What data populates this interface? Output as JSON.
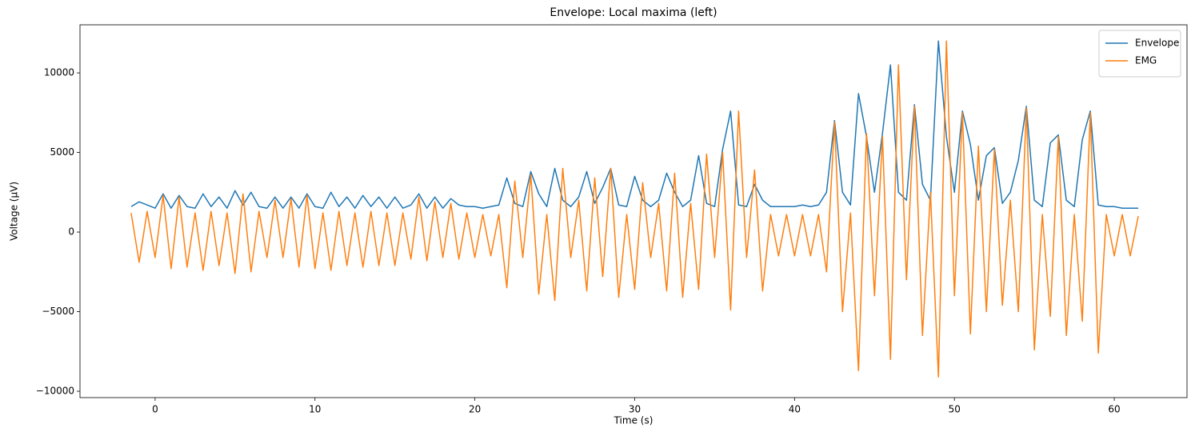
{
  "chart_data": {
    "type": "line",
    "title": "Envelope: Local maxima (left)",
    "x_label": "Time (s)",
    "y_label": "Voltage (μV)",
    "x": [
      -1.5,
      -1.0,
      -0.5,
      0.0,
      0.5,
      1.0,
      1.5,
      2.0,
      2.5,
      3.0,
      3.5,
      4.0,
      4.5,
      5.0,
      5.5,
      6.0,
      6.5,
      7.0,
      7.5,
      8.0,
      8.5,
      9.0,
      9.5,
      10.0,
      10.5,
      11.0,
      11.5,
      12.0,
      12.5,
      13.0,
      13.5,
      14.0,
      14.5,
      15.0,
      15.5,
      16.0,
      16.5,
      17.0,
      17.5,
      18.0,
      18.5,
      19.0,
      19.5,
      20.0,
      20.5,
      21.0,
      21.5,
      22.0,
      22.5,
      23.0,
      23.5,
      24.0,
      24.5,
      25.0,
      25.5,
      26.0,
      26.5,
      27.0,
      27.5,
      28.0,
      28.5,
      29.0,
      29.5,
      30.0,
      30.5,
      31.0,
      31.5,
      32.0,
      32.5,
      33.0,
      33.5,
      34.0,
      34.5,
      35.0,
      35.5,
      36.0,
      36.5,
      37.0,
      37.5,
      38.0,
      38.5,
      39.0,
      39.5,
      40.0,
      40.5,
      41.0,
      41.5,
      42.0,
      42.5,
      43.0,
      43.5,
      44.0,
      44.5,
      45.0,
      45.5,
      46.0,
      46.5,
      47.0,
      47.5,
      48.0,
      48.5,
      49.0,
      49.5,
      50.0,
      50.5,
      51.0,
      51.5,
      52.0,
      52.5,
      53.0,
      53.5,
      54.0,
      54.5,
      55.0,
      55.5,
      56.0,
      56.5,
      57.0,
      57.5,
      58.0,
      58.5,
      59.0,
      59.5,
      60.0,
      60.5,
      61.0,
      61.5
    ],
    "series": [
      {
        "name": "Envelope",
        "color": "#1f77b4",
        "values": [
          1600,
          1900,
          1700,
          1500,
          2400,
          1500,
          2300,
          1600,
          1500,
          2400,
          1600,
          2200,
          1500,
          2600,
          1700,
          2500,
          1600,
          1500,
          2200,
          1500,
          2200,
          1500,
          2400,
          1600,
          1500,
          2500,
          1600,
          2200,
          1500,
          2300,
          1600,
          2200,
          1500,
          2200,
          1500,
          1700,
          2400,
          1500,
          2200,
          1500,
          2100,
          1700,
          1600,
          1600,
          1500,
          1600,
          1700,
          3400,
          1800,
          1600,
          3800,
          2400,
          1600,
          4000,
          2000,
          1600,
          2200,
          3800,
          1800,
          2800,
          4000,
          1700,
          1600,
          3500,
          2000,
          1600,
          2000,
          3700,
          2500,
          1600,
          2000,
          4800,
          1800,
          1600,
          5200,
          7600,
          1700,
          1600,
          3000,
          2000,
          1600,
          1600,
          1600,
          1600,
          1700,
          1600,
          1700,
          2500,
          7000,
          2500,
          1700,
          8700,
          6000,
          2500,
          6200,
          10500,
          2500,
          2000,
          8000,
          3000,
          2000,
          12000,
          6000,
          2500,
          7600,
          5500,
          2000,
          4800,
          5300,
          1800,
          2500,
          4500,
          7900,
          2000,
          1600,
          5600,
          6100,
          2000,
          1600,
          5800,
          7600,
          1700,
          1600,
          1600,
          1500,
          1500,
          1500
        ]
      },
      {
        "name": "EMG",
        "color": "#ff7f0e",
        "values": [
          1200,
          -1900,
          1300,
          -1600,
          2300,
          -2300,
          2200,
          -2200,
          1200,
          -2400,
          1300,
          -2100,
          1200,
          -2600,
          2400,
          -2500,
          1300,
          -1600,
          2000,
          -1600,
          2100,
          -2200,
          2300,
          -2300,
          1200,
          -2400,
          1300,
          -2100,
          1200,
          -2200,
          1300,
          -2100,
          1200,
          -2100,
          1200,
          -1700,
          2200,
          -1800,
          1900,
          -1600,
          1800,
          -1700,
          1200,
          -1600,
          1100,
          -1500,
          1100,
          -3500,
          3200,
          -1600,
          3600,
          -3900,
          1100,
          -4300,
          4000,
          -1600,
          2000,
          -3700,
          3400,
          -2800,
          4000,
          -4100,
          1100,
          -3600,
          3100,
          -1600,
          1800,
          -3700,
          3700,
          -4100,
          1800,
          -3600,
          4900,
          -1600,
          5000,
          -4900,
          7600,
          -1600,
          3900,
          -3700,
          1100,
          -1500,
          1100,
          -1500,
          1100,
          -1500,
          1100,
          -2500,
          6900,
          -5000,
          1200,
          -8700,
          6200,
          -4000,
          6000,
          -8000,
          10500,
          -3000,
          7900,
          -6500,
          2500,
          -9100,
          12000,
          -4000,
          7500,
          -6400,
          5400,
          -5000,
          5200,
          -4600,
          2000,
          -5000,
          7800,
          -7400,
          1100,
          -5300,
          6000,
          -6500,
          1100,
          -5600,
          7500,
          -7600,
          1100,
          -1500,
          1100,
          -1500,
          1000
        ]
      }
    ],
    "xlim": [
      -4.7,
      64.55
    ],
    "xticks": [
      0,
      10,
      20,
      30,
      40,
      50,
      60
    ],
    "ylim": [
      -10400,
      13020
    ],
    "yticks": [
      {
        "value": -10000,
        "label": "−10000"
      },
      {
        "value": -5000,
        "label": "−5000"
      },
      0,
      5000,
      10000
    ],
    "legend": "upper right"
  }
}
